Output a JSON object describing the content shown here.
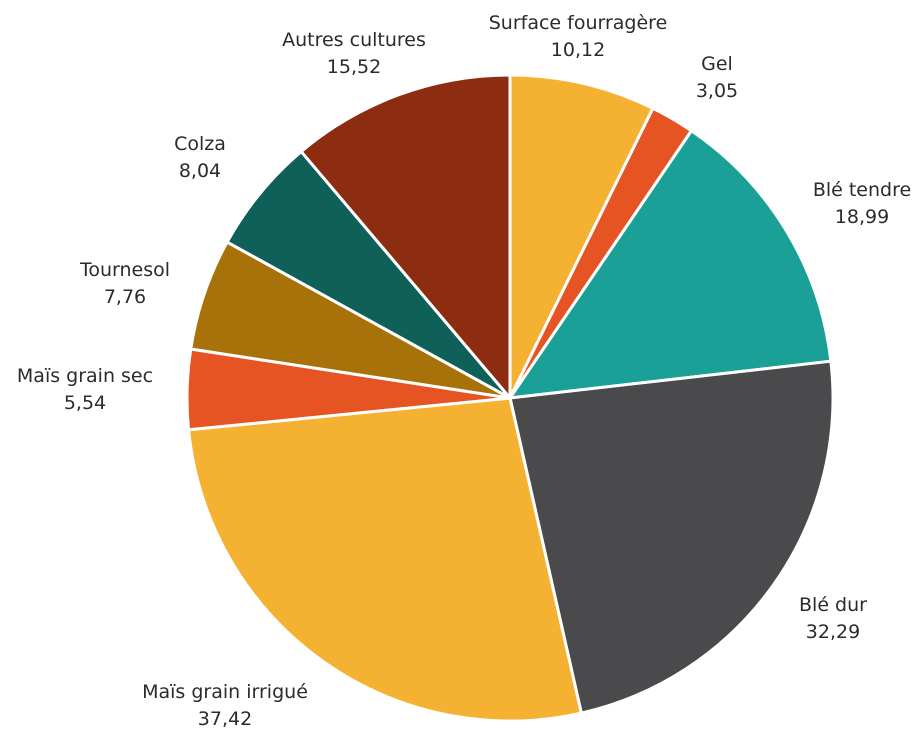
{
  "chart_data": {
    "type": "pie",
    "start_angle_deg": 0,
    "direction": "clockwise",
    "slices": [
      {
        "label": "Surface fourragère",
        "value": 10.12,
        "value_text": "10,12",
        "color": "#F5B232"
      },
      {
        "label": "Gel",
        "value": 3.05,
        "value_text": "3,05",
        "color": "#E65424"
      },
      {
        "label": "Blé tendre",
        "value": 18.99,
        "value_text": "18,99",
        "color": "#1AA096"
      },
      {
        "label": "Blé dur",
        "value": 32.29,
        "value_text": "32,29",
        "color": "#4A4A4C"
      },
      {
        "label": "Maïs grain irrigué",
        "value": 37.42,
        "value_text": "37,42",
        "color": "#F5B232"
      },
      {
        "label": "Maïs grain sec",
        "value": 5.54,
        "value_text": "5,54",
        "color": "#E65424"
      },
      {
        "label": "Tournesol",
        "value": 7.76,
        "value_text": "7,76",
        "color": "#A8720A"
      },
      {
        "label": "Colza",
        "value": 8.04,
        "value_text": "8,04",
        "color": "#10605A"
      },
      {
        "label": "Autres cultures",
        "value": 15.52,
        "value_text": "15,52",
        "color": "#8C2D11"
      }
    ]
  }
}
